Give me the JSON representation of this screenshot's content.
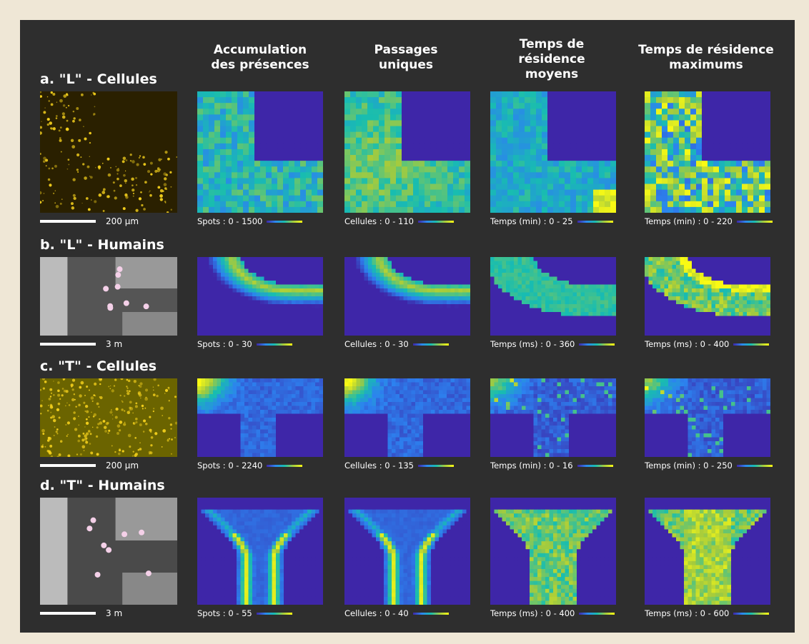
{
  "columns": [
    "Accumulation\ndes présences",
    "Passages\nuniques",
    "Temps de\nrésidence\nmoyens",
    "Temps de résidence\nmaximums"
  ],
  "rows": [
    {
      "label": "a. \"L\" - Cellules",
      "scale": "200 µm",
      "colorbars": [
        "Spots : 0 - 1500",
        "Cellules : 0 - 110",
        "Temps (min) : 0 - 25",
        "Temps (min) : 0 - 220"
      ]
    },
    {
      "label": "b. \"L\" - Humains",
      "scale": "3 m",
      "colorbars": [
        "Spots : 0 - 30",
        "Cellules : 0 - 30",
        "Temps (ms) : 0 - 360",
        "Temps (ms) : 0 - 400"
      ]
    },
    {
      "label": "c. \"T\" - Cellules",
      "scale": "200 µm",
      "colorbars": [
        "Spots : 0 - 2240",
        "Cellules : 0 - 135",
        "Temps (min) : 0 - 16",
        "Temps (min) : 0 - 250"
      ]
    },
    {
      "label": "d. \"T\" - Humains",
      "scale": "3 m",
      "colorbars": [
        "Spots : 0 - 55",
        "Cellules : 0 - 40",
        "Temps (ms) : 0 - 400",
        "Temps (ms) : 0 - 600"
      ]
    }
  ]
}
